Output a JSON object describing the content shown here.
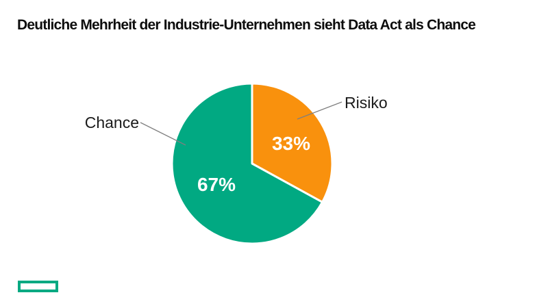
{
  "chart_data": {
    "type": "pie",
    "title": "Deutliche Mehrheit der Industrie-Unternehmen sieht Data Act als Chance",
    "categories": [
      "Risiko",
      "Chance"
    ],
    "values": [
      33,
      67
    ],
    "value_labels": [
      "33%",
      "67%"
    ],
    "colors": [
      "#F9910D",
      "#01A982"
    ],
    "start_angle_deg": 0,
    "direction": "clockwise",
    "legend_position": "none",
    "label_style": "outside-labels-with-leader-lines",
    "background": "#ffffff",
    "percent_label_color": "#ffffff",
    "category_label_color": "#1a1a1a",
    "leader_line_color": "#7f7f7f",
    "slice_divider_color": "#ffffff"
  },
  "footer": {
    "logo_color": "#01A982"
  }
}
